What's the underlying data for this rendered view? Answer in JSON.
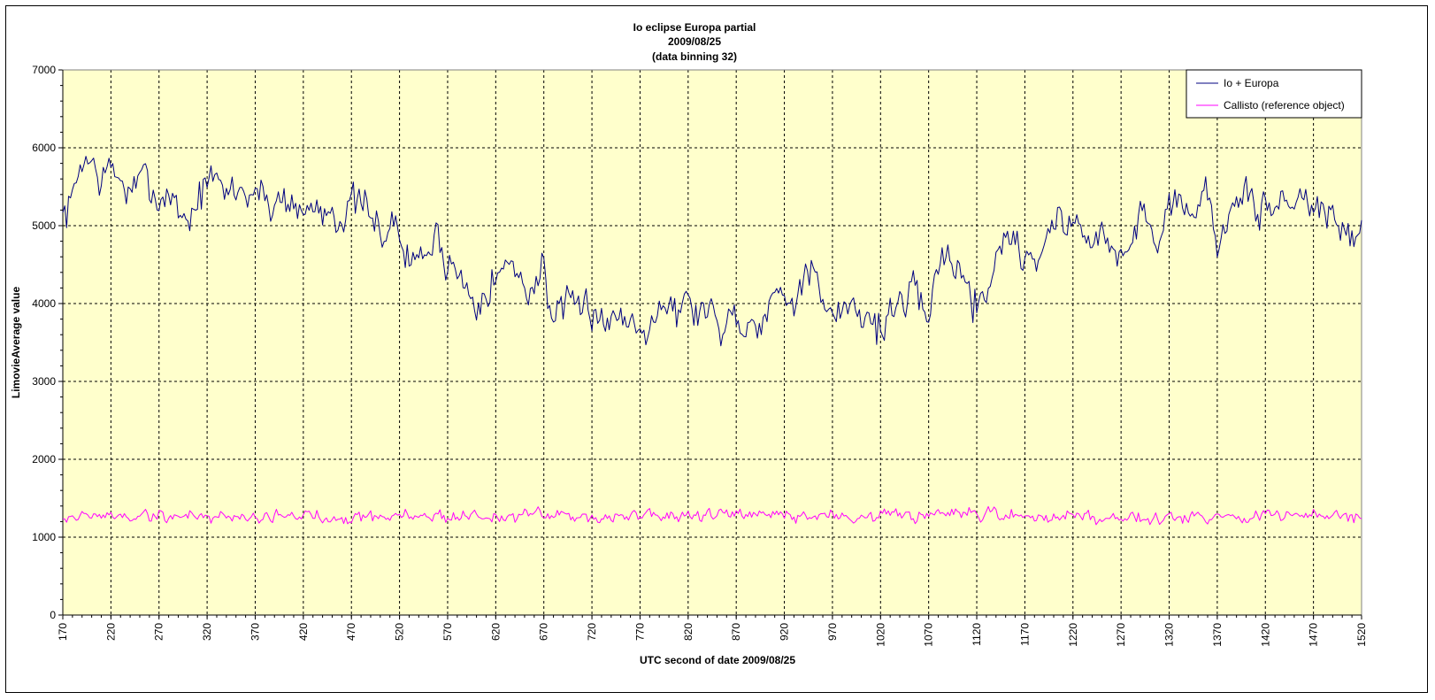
{
  "chart_data": {
    "type": "line",
    "title_lines": [
      "Io eclipse Europa partial",
      "2009/08/25",
      "(data binning 32)"
    ],
    "xlabel": "UTC second  of date 2009/08/25",
    "ylabel": "LimovieAverage value",
    "xlim": [
      170,
      1520
    ],
    "ylim": [
      0,
      7000
    ],
    "x_ticks": [
      170,
      220,
      270,
      320,
      370,
      420,
      470,
      520,
      570,
      620,
      670,
      720,
      770,
      820,
      870,
      920,
      970,
      1020,
      1070,
      1120,
      1170,
      1220,
      1270,
      1320,
      1370,
      1420,
      1470,
      1520
    ],
    "y_ticks": [
      0,
      1000,
      2000,
      3000,
      4000,
      5000,
      6000,
      7000
    ],
    "grid": true,
    "plot_background": "#FFFFCC",
    "legend_position": "top-right",
    "sample_step": 2,
    "series": [
      {
        "name": "Io + Europa",
        "color": "#000080",
        "anchors_x": [
          170,
          180,
          190,
          200,
          210,
          220,
          230,
          240,
          250,
          260,
          270,
          280,
          290,
          300,
          310,
          320,
          330,
          340,
          350,
          360,
          370,
          380,
          390,
          400,
          410,
          420,
          430,
          440,
          450,
          460,
          470,
          480,
          490,
          500,
          510,
          520,
          530,
          540,
          550,
          560,
          570,
          580,
          590,
          600,
          610,
          620,
          630,
          640,
          650,
          660,
          670,
          680,
          690,
          700,
          710,
          720,
          730,
          740,
          750,
          760,
          770,
          780,
          790,
          800,
          810,
          820,
          830,
          840,
          850,
          860,
          870,
          880,
          890,
          900,
          910,
          920,
          930,
          940,
          950,
          960,
          970,
          980,
          990,
          1000,
          1010,
          1020,
          1030,
          1040,
          1050,
          1060,
          1070,
          1080,
          1090,
          1100,
          1110,
          1120,
          1130,
          1140,
          1150,
          1160,
          1170,
          1180,
          1190,
          1200,
          1210,
          1220,
          1230,
          1240,
          1250,
          1260,
          1270,
          1280,
          1290,
          1300,
          1310,
          1320,
          1330,
          1340,
          1350,
          1360,
          1370,
          1380,
          1390,
          1400,
          1410,
          1420,
          1430,
          1440,
          1450,
          1460,
          1470,
          1480,
          1490,
          1500,
          1510,
          1520
        ],
        "anchors_y": [
          5100,
          5300,
          5900,
          5800,
          5600,
          5700,
          5600,
          5400,
          5500,
          5600,
          5300,
          5500,
          5200,
          5100,
          5300,
          5600,
          5500,
          5400,
          5500,
          5400,
          5500,
          5300,
          5300,
          5400,
          5300,
          5100,
          5300,
          5200,
          5300,
          5100,
          5200,
          5300,
          5000,
          5000,
          5000,
          4900,
          4500,
          4600,
          4700,
          4800,
          4600,
          4400,
          4200,
          4100,
          4300,
          4300,
          4500,
          4400,
          4300,
          4200,
          4500,
          3800,
          3900,
          3800,
          3900,
          4000,
          3900,
          3700,
          3900,
          3800,
          3700,
          3900,
          4000,
          4000,
          3900,
          4000,
          3900,
          4000,
          3700,
          3800,
          3900,
          3700,
          3800,
          4000,
          4100,
          4100,
          4200,
          4300,
          4400,
          3900,
          3700,
          3900,
          4100,
          3900,
          3800,
          3700,
          3900,
          4000,
          4100,
          3900,
          4000,
          4400,
          4700,
          4500,
          4200,
          4000,
          4200,
          4600,
          4900,
          4800,
          4600,
          4600,
          4800,
          5000,
          5100,
          5000,
          4900,
          5000,
          4800,
          4700,
          4600,
          4700,
          5100,
          5100,
          4900,
          5300,
          5400,
          5300,
          5300,
          5300,
          4900,
          5100,
          5200,
          5300,
          5200,
          5300,
          5200,
          5300,
          5300,
          5500,
          5300,
          5200,
          5000,
          4900,
          4900,
          4900
        ],
        "noise_amplitude": 230,
        "seed": 7
      },
      {
        "name": "Callisto (reference object)",
        "color": "#FF00FF",
        "anchors_x": [
          170,
          1520
        ],
        "anchors_y": [
          1270,
          1270
        ],
        "noise_amplitude": 75,
        "seed": 19
      }
    ]
  }
}
